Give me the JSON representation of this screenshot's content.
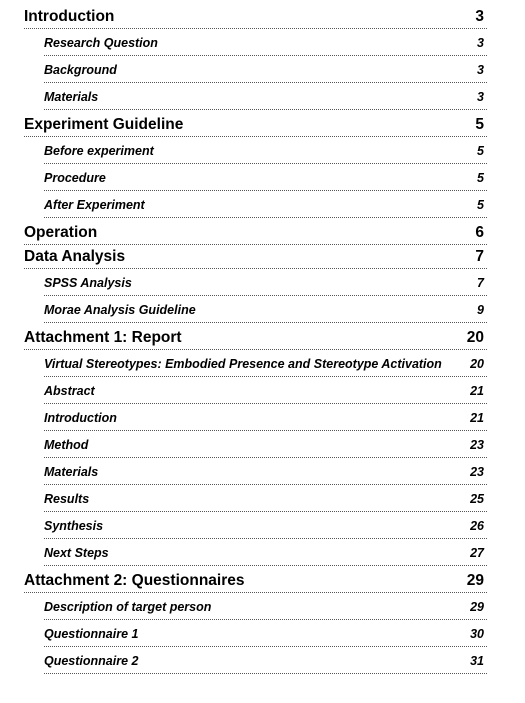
{
  "toc": [
    {
      "level": "section",
      "label": "Introduction",
      "page": "3"
    },
    {
      "level": "sub",
      "label": "Research Question",
      "page": "3"
    },
    {
      "level": "sub",
      "label": "Background",
      "page": "3"
    },
    {
      "level": "sub",
      "label": "Materials",
      "page": "3"
    },
    {
      "level": "section",
      "label": "Experiment Guideline",
      "page": "5"
    },
    {
      "level": "sub",
      "label": "Before experiment",
      "page": "5"
    },
    {
      "level": "sub",
      "label": "Procedure",
      "page": "5"
    },
    {
      "level": "sub",
      "label": "After Experiment",
      "page": "5"
    },
    {
      "level": "section",
      "label": "Operation",
      "page": "6"
    },
    {
      "level": "section",
      "label": "Data Analysis",
      "page": "7"
    },
    {
      "level": "sub",
      "label": "SPSS Analysis",
      "page": "7"
    },
    {
      "level": "sub",
      "label": "Morae Analysis Guideline",
      "page": "9"
    },
    {
      "level": "section",
      "label": "Attachment 1: Report",
      "page": "20"
    },
    {
      "level": "sub",
      "label": "Virtual Stereotypes: Embodied Presence and Stereotype Activation",
      "page": "20"
    },
    {
      "level": "sub",
      "label": "Abstract",
      "page": "21"
    },
    {
      "level": "sub",
      "label": "Introduction",
      "page": "21"
    },
    {
      "level": "sub",
      "label": "Method",
      "page": "23"
    },
    {
      "level": "sub",
      "label": "Materials",
      "page": "23"
    },
    {
      "level": "sub",
      "label": "Results",
      "page": "25"
    },
    {
      "level": "sub",
      "label": "Synthesis",
      "page": "26"
    },
    {
      "level": "sub",
      "label": "Next Steps",
      "page": "27"
    },
    {
      "level": "section",
      "label": "Attachment 2: Questionnaires",
      "page": "29"
    },
    {
      "level": "sub",
      "label": "Description of target person",
      "page": "29"
    },
    {
      "level": "sub",
      "label": "Questionnaire 1",
      "page": "30"
    },
    {
      "level": "sub",
      "label": "Questionnaire 2",
      "page": "31"
    }
  ]
}
